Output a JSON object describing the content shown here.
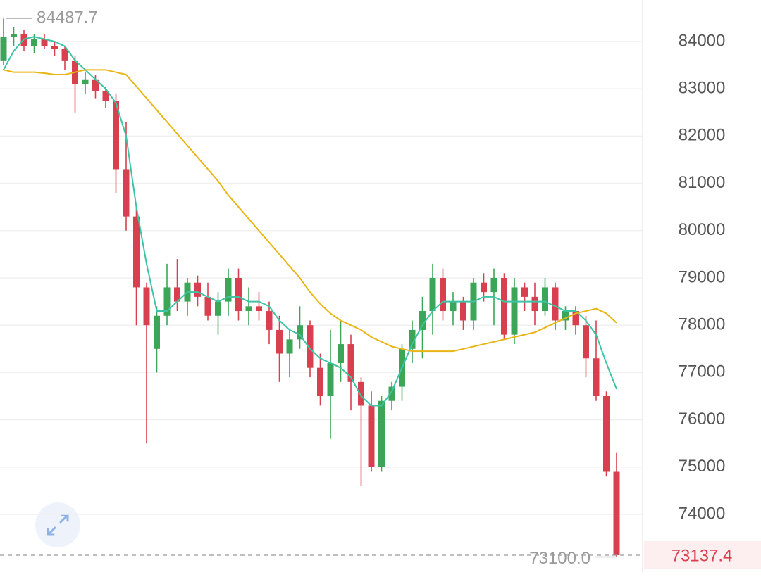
{
  "chart_data": {
    "type": "candlestick",
    "ylim": [
      72750,
      84878
    ],
    "yticks": [
      74000,
      75000,
      76000,
      77000,
      78000,
      79000,
      80000,
      81000,
      82000,
      83000,
      84000
    ],
    "grid": true,
    "up_color": "#3ba558",
    "down_color": "#d9404f",
    "open": [
      83600,
      84100,
      84150,
      83900,
      84050,
      83900,
      83850,
      83600,
      83100,
      83200,
      82950,
      82750,
      81300,
      80300,
      78800,
      77500,
      78200,
      78800,
      78500,
      78900,
      78600,
      78200,
      78500,
      79000,
      78300,
      78400,
      78300,
      77900,
      77400,
      77700,
      78000,
      77100,
      76500,
      77200,
      77600,
      76800,
      76300,
      75000,
      76400,
      76700,
      77500,
      77900,
      78300,
      79000,
      78300,
      78500,
      78100,
      78900,
      78700,
      79000,
      77800,
      78800,
      78600,
      78300,
      78800,
      78100,
      78300,
      78000,
      77300,
      76500,
      74900
    ],
    "high": [
      84487.7,
      84300,
      84250,
      84150,
      84150,
      84000,
      83900,
      83700,
      83350,
      83300,
      83050,
      82900,
      82300,
      80500,
      78900,
      78400,
      79300,
      79400,
      79000,
      79050,
      78900,
      78700,
      79200,
      79200,
      78800,
      78700,
      78500,
      78200,
      77900,
      78400,
      78100,
      77400,
      77900,
      78100,
      77800,
      76900,
      76600,
      76500,
      76800,
      77600,
      78100,
      78600,
      79300,
      79200,
      78700,
      78600,
      79000,
      79100,
      79200,
      79100,
      79000,
      78900,
      78900,
      79000,
      78900,
      78400,
      78400,
      78200,
      78100,
      76600,
      75300
    ],
    "low": [
      83500,
      83900,
      83800,
      83750,
      83850,
      83700,
      83400,
      82500,
      82900,
      82800,
      82600,
      80800,
      80000,
      78000,
      75500,
      77000,
      78000,
      78300,
      78200,
      78400,
      78100,
      77800,
      78200,
      78100,
      78000,
      78100,
      77600,
      76800,
      76900,
      77500,
      76900,
      76300,
      75600,
      76800,
      76200,
      74600,
      74900,
      74900,
      76200,
      76400,
      77200,
      77300,
      77800,
      78100,
      78000,
      77900,
      77900,
      78500,
      78000,
      77700,
      77600,
      78300,
      78000,
      78200,
      77900,
      77900,
      77800,
      76900,
      76400,
      74800,
      73100
    ],
    "close": [
      84100,
      84150,
      83900,
      84050,
      83900,
      83850,
      83600,
      83100,
      83200,
      82950,
      82750,
      81300,
      80300,
      78800,
      78000,
      78200,
      78800,
      78500,
      78900,
      78600,
      78200,
      78500,
      79000,
      78300,
      78400,
      78300,
      77900,
      77400,
      77700,
      78000,
      77100,
      76500,
      77200,
      77600,
      76800,
      76300,
      75000,
      76400,
      76700,
      77500,
      77900,
      78300,
      79000,
      78300,
      78500,
      78100,
      78900,
      78700,
      79000,
      77800,
      78800,
      78600,
      78300,
      78800,
      78100,
      78300,
      78000,
      77300,
      76500,
      74900,
      73137.4
    ],
    "series": [
      {
        "color": "#3cc4a4",
        "values": [
          83400,
          83800,
          84050,
          84100,
          84050,
          84000,
          83900,
          83600,
          83400,
          83200,
          83000,
          82700,
          82000,
          80500,
          79300,
          78300,
          78300,
          78500,
          78700,
          78700,
          78600,
          78500,
          78600,
          78600,
          78500,
          78500,
          78400,
          78100,
          77900,
          77800,
          77500,
          77300,
          77200,
          77100,
          76900,
          76500,
          76300,
          76300,
          76600,
          77100,
          77600,
          78000,
          78300,
          78500,
          78500,
          78500,
          78500,
          78600,
          78600,
          78500,
          78500,
          78500,
          78500,
          78500,
          78400,
          78300,
          78300,
          78100,
          77800,
          77200,
          76650
        ]
      },
      {
        "color": "#e9b514",
        "values": [
          83400,
          83350,
          83350,
          83350,
          83330,
          83300,
          83300,
          83350,
          83400,
          83400,
          83400,
          83350,
          83300,
          83050,
          82800,
          82550,
          82300,
          82050,
          81800,
          81550,
          81300,
          81050,
          80750,
          80500,
          80250,
          80000,
          79750,
          79500,
          79250,
          79000,
          78700,
          78450,
          78250,
          78100,
          78000,
          77900,
          77750,
          77650,
          77550,
          77500,
          77450,
          77450,
          77450,
          77450,
          77450,
          77500,
          77550,
          77600,
          77650,
          77700,
          77750,
          77800,
          77850,
          77950,
          78050,
          78150,
          78250,
          78300,
          78350,
          78250,
          78050
        ]
      }
    ],
    "high_label": 84487.7,
    "low_label": {
      "value": 73100,
      "label": "73100.0"
    },
    "last_price": 73137.4
  }
}
